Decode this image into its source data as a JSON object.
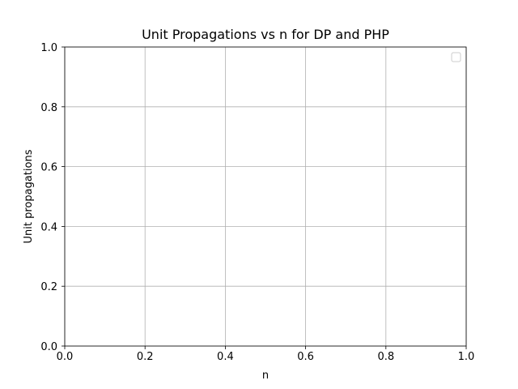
{
  "chart_data": {
    "type": "line",
    "title": "Unit Propagations vs n for DP and PHP",
    "xlabel": "n",
    "ylabel": "Unit propagations",
    "xlim": [
      0.0,
      1.0
    ],
    "ylim": [
      0.0,
      1.0
    ],
    "x_ticks": [
      "0.0",
      "0.2",
      "0.4",
      "0.6",
      "0.8",
      "1.0"
    ],
    "y_ticks": [
      "0.0",
      "0.2",
      "0.4",
      "0.6",
      "0.8",
      "1.0"
    ],
    "series": [],
    "grid": true,
    "legend": "top-right",
    "legend_entries": []
  }
}
